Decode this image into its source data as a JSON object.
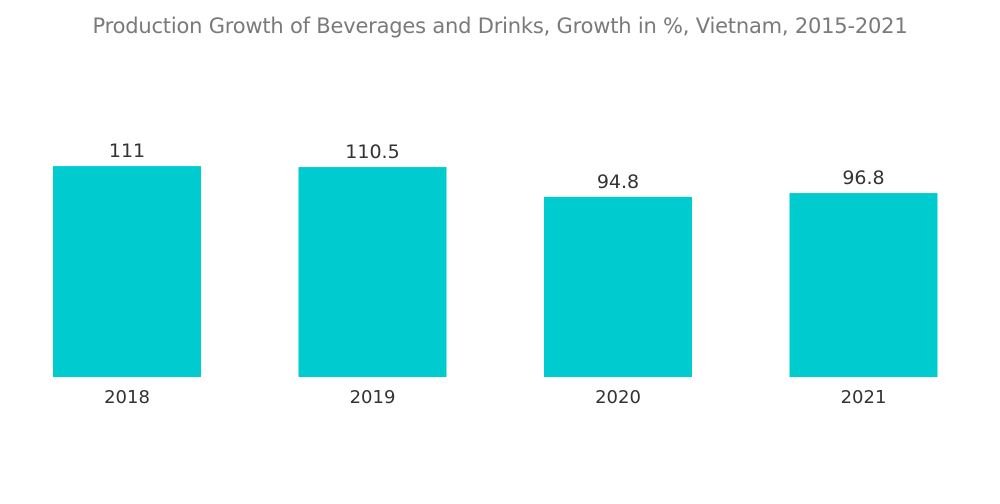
{
  "chart_data": {
    "type": "bar",
    "title": "Production Growth of Beverages and Drinks, Growth in %, Vietnam, 2015-2021",
    "categories": [
      "2018",
      "2019",
      "2020",
      "2021"
    ],
    "values": [
      111,
      110.5,
      94.8,
      96.8
    ],
    "value_labels": [
      "111",
      "110.5",
      "94.8",
      "96.8"
    ],
    "xlabel": "",
    "ylabel": "",
    "ylim": [
      0,
      116
    ],
    "bar_color": "#00CCCF",
    "grid": false,
    "legend": "none"
  }
}
